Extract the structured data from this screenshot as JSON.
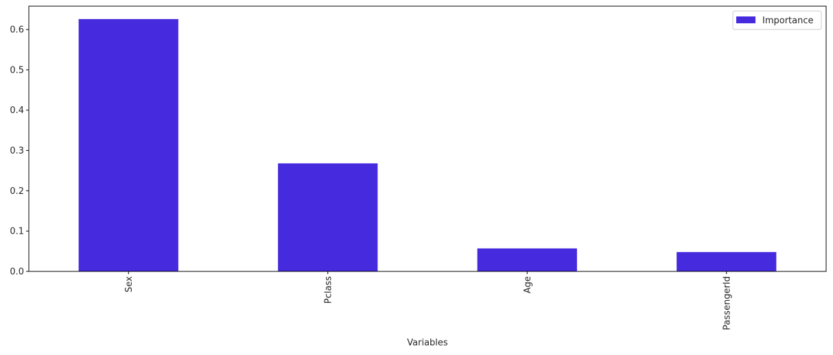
{
  "chart_data": {
    "type": "bar",
    "title": "",
    "xlabel": "Variables",
    "ylabel": "",
    "categories": [
      "Sex",
      "Pclass",
      "Age",
      "PassengerId"
    ],
    "series": [
      {
        "name": "Importance",
        "values": [
          0.626,
          0.268,
          0.057,
          0.048
        ],
        "color": "#462ade"
      }
    ],
    "ylim": [
      0,
      0.658
    ],
    "yticks": [
      0.0,
      0.1,
      0.2,
      0.3,
      0.4,
      0.5,
      0.6
    ],
    "ytick_labels": [
      "0.0",
      "0.1",
      "0.2",
      "0.3",
      "0.4",
      "0.5",
      "0.6"
    ],
    "xtick_rotation": "vertical",
    "legend": {
      "position": "top-right",
      "entries": [
        "Importance"
      ]
    },
    "grid": false
  }
}
